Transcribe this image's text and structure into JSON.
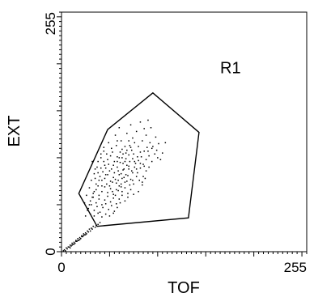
{
  "chart_data": {
    "type": "scatter",
    "title": "",
    "xlabel": "TOF",
    "ylabel": "EXT",
    "xlim": [
      0,
      255
    ],
    "ylim": [
      0,
      255
    ],
    "x_ticks": [
      "0",
      "255"
    ],
    "y_ticks": [
      "0",
      "255"
    ],
    "grid": false,
    "gate": {
      "name": "R1",
      "label_position": [
        165,
        190
      ],
      "vertices": [
        [
          48,
          130
        ],
        [
          95,
          169
        ],
        [
          143,
          127
        ],
        [
          132,
          36
        ],
        [
          37,
          27
        ],
        [
          18,
          62
        ]
      ]
    },
    "series": [
      {
        "points": [
          [
            52,
            110
          ],
          [
            58,
            118
          ],
          [
            63,
            100
          ],
          [
            67,
            105
          ],
          [
            71,
            113
          ],
          [
            75,
            104
          ],
          [
            80,
            112
          ],
          [
            84,
            118
          ],
          [
            88,
            124
          ],
          [
            93,
            132
          ],
          [
            98,
            122
          ],
          [
            45,
            92
          ],
          [
            48,
            98
          ],
          [
            51,
            102
          ],
          [
            55,
            96
          ],
          [
            58,
            101
          ],
          [
            61,
            106
          ],
          [
            64,
            94
          ],
          [
            67,
            99
          ],
          [
            70,
            103
          ],
          [
            73,
            108
          ],
          [
            76,
            96
          ],
          [
            79,
            101
          ],
          [
            82,
            106
          ],
          [
            85,
            93
          ],
          [
            88,
            98
          ],
          [
            91,
            102
          ],
          [
            94,
            96
          ],
          [
            40,
            80
          ],
          [
            43,
            85
          ],
          [
            46,
            89
          ],
          [
            49,
            93
          ],
          [
            52,
            88
          ],
          [
            55,
            84
          ],
          [
            58,
            90
          ],
          [
            61,
            95
          ],
          [
            64,
            87
          ],
          [
            67,
            82
          ],
          [
            70,
            91
          ],
          [
            73,
            86
          ],
          [
            76,
            90
          ],
          [
            79,
            84
          ],
          [
            82,
            89
          ],
          [
            85,
            80
          ],
          [
            88,
            86
          ],
          [
            91,
            90
          ],
          [
            36,
            72
          ],
          [
            39,
            76
          ],
          [
            42,
            70
          ],
          [
            45,
            78
          ],
          [
            48,
            82
          ],
          [
            51,
            75
          ],
          [
            54,
            79
          ],
          [
            57,
            73
          ],
          [
            60,
            82
          ],
          [
            63,
            78
          ],
          [
            66,
            74
          ],
          [
            69,
            81
          ],
          [
            72,
            77
          ],
          [
            75,
            72
          ],
          [
            78,
            80
          ],
          [
            81,
            76
          ],
          [
            84,
            71
          ],
          [
            33,
            62
          ],
          [
            36,
            66
          ],
          [
            39,
            60
          ],
          [
            42,
            64
          ],
          [
            45,
            69
          ],
          [
            48,
            63
          ],
          [
            51,
            67
          ],
          [
            54,
            61
          ],
          [
            57,
            66
          ],
          [
            60,
            70
          ],
          [
            63,
            64
          ],
          [
            66,
            68
          ],
          [
            69,
            62
          ],
          [
            72,
            66
          ],
          [
            75,
            61
          ],
          [
            30,
            54
          ],
          [
            33,
            58
          ],
          [
            36,
            52
          ],
          [
            39,
            56
          ],
          [
            42,
            50
          ],
          [
            45,
            55
          ],
          [
            48,
            59
          ],
          [
            51,
            53
          ],
          [
            54,
            57
          ],
          [
            57,
            51
          ],
          [
            60,
            56
          ],
          [
            63,
            60
          ],
          [
            66,
            54
          ],
          [
            69,
            58
          ],
          [
            28,
            46
          ],
          [
            31,
            50
          ],
          [
            34,
            44
          ],
          [
            37,
            48
          ],
          [
            40,
            42
          ],
          [
            43,
            47
          ],
          [
            46,
            51
          ],
          [
            49,
            45
          ],
          [
            52,
            49
          ],
          [
            55,
            43
          ],
          [
            58,
            47
          ],
          [
            61,
            52
          ],
          [
            30,
            40
          ],
          [
            34,
            38
          ],
          [
            38,
            41
          ],
          [
            42,
            37
          ],
          [
            46,
            40
          ],
          [
            50,
            38
          ],
          [
            54,
            41
          ],
          [
            62,
            118
          ],
          [
            68,
            126
          ],
          [
            74,
            121
          ],
          [
            78,
            128
          ],
          [
            86,
            131
          ],
          [
            90,
            140
          ],
          [
            95,
            112
          ],
          [
            99,
            108
          ],
          [
            103,
            98
          ],
          [
            101,
            115
          ],
          [
            56,
            124
          ],
          [
            49,
            116
          ],
          [
            44,
            107
          ],
          [
            41,
            100
          ],
          [
            37,
            90
          ],
          [
            34,
            83
          ],
          [
            31,
            76
          ],
          [
            29,
            68
          ],
          [
            26,
            60
          ],
          [
            24,
            52
          ],
          [
            65,
            88
          ],
          [
            68,
            92
          ],
          [
            71,
            96
          ],
          [
            74,
            99
          ],
          [
            77,
            94
          ],
          [
            80,
            97
          ],
          [
            83,
            101
          ],
          [
            86,
            107
          ],
          [
            89,
            111
          ],
          [
            92,
            116
          ],
          [
            59,
            76
          ],
          [
            62,
            72
          ],
          [
            65,
            79
          ],
          [
            68,
            75
          ],
          [
            71,
            71
          ],
          [
            74,
            76
          ],
          [
            53,
            64
          ],
          [
            56,
            60
          ],
          [
            59,
            65
          ],
          [
            62,
            69
          ],
          [
            47,
            72
          ],
          [
            50,
            70
          ],
          [
            53,
            74
          ],
          [
            56,
            77
          ],
          [
            59,
            86
          ],
          [
            62,
            83
          ],
          [
            38,
            96
          ],
          [
            41,
            104
          ],
          [
            44,
            111
          ],
          [
            35,
            88
          ],
          [
            32,
            96
          ],
          [
            105,
            105
          ],
          [
            108,
            116
          ],
          [
            80,
            64
          ],
          [
            84,
            74
          ],
          [
            87,
            78
          ],
          [
            72,
            135
          ],
          [
            82,
            138
          ],
          [
            60,
            132
          ],
          [
            66,
            112
          ],
          [
            70,
            118
          ],
          [
            76,
            116
          ],
          [
            63,
            109
          ],
          [
            57,
            113
          ],
          [
            53,
            106
          ],
          [
            47,
            104
          ],
          [
            44,
            96
          ],
          [
            41,
            89
          ],
          [
            38,
            84
          ],
          [
            35,
            78
          ],
          [
            60,
            100
          ],
          [
            64,
            104
          ],
          [
            68,
            108
          ],
          [
            72,
            111
          ],
          [
            66,
            96
          ],
          [
            70,
            88
          ],
          [
            74,
            84
          ],
          [
            78,
            88
          ],
          [
            82,
            94
          ],
          [
            86,
            91
          ],
          [
            90,
            107
          ],
          [
            94,
            110
          ],
          [
            97,
            104
          ],
          [
            100,
            100
          ],
          [
            58,
            96
          ],
          [
            54,
            92
          ],
          [
            50,
            86
          ],
          [
            46,
            82
          ],
          [
            42,
            76
          ],
          [
            38,
            70
          ],
          [
            34,
            64
          ],
          [
            32,
            58
          ],
          [
            29,
            50
          ],
          [
            27,
            44
          ],
          [
            25,
            38
          ],
          [
            3,
            2
          ],
          [
            5,
            4
          ],
          [
            7,
            5
          ],
          [
            9,
            7
          ],
          [
            11,
            9
          ],
          [
            13,
            10
          ],
          [
            15,
            12
          ],
          [
            17,
            14
          ],
          [
            19,
            15
          ],
          [
            21,
            17
          ],
          [
            23,
            19
          ],
          [
            25,
            20
          ],
          [
            27,
            22
          ],
          [
            29,
            24
          ],
          [
            31,
            25
          ],
          [
            33,
            27
          ],
          [
            6,
            3
          ],
          [
            10,
            6
          ],
          [
            14,
            9
          ],
          [
            18,
            12
          ],
          [
            22,
            16
          ],
          [
            26,
            19
          ],
          [
            30,
            22
          ],
          [
            4,
            1
          ],
          [
            8,
            5
          ],
          [
            12,
            8
          ],
          [
            16,
            11
          ],
          [
            20,
            14
          ],
          [
            24,
            18
          ],
          [
            28,
            21
          ],
          [
            32,
            24
          ],
          [
            36,
            28
          ],
          [
            40,
            31
          ],
          [
            2,
            1
          ],
          [
            35,
            26
          ],
          [
            38,
            29
          ],
          [
            11,
            7
          ],
          [
            15,
            11
          ],
          [
            19,
            13
          ],
          [
            23,
            17
          ],
          [
            9,
            4
          ],
          [
            13,
            8
          ],
          [
            17,
            12
          ],
          [
            21,
            16
          ],
          [
            25,
            18
          ]
        ]
      }
    ]
  }
}
